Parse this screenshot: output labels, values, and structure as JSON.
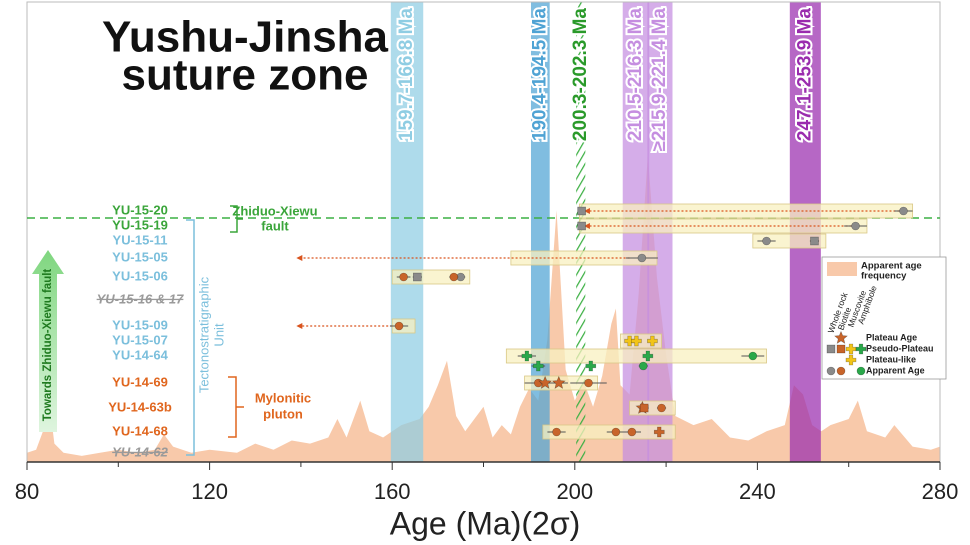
{
  "chart_data": {
    "type": "geochronology",
    "title": [
      "Yushu-Jinsha",
      "suture zone"
    ],
    "xlabel": "Age (Ma)(2σ)",
    "xlim": [
      80,
      280
    ],
    "xticks": [
      80,
      120,
      160,
      200,
      240,
      280
    ],
    "xminor_ticks": [
      100,
      140,
      180,
      220,
      260
    ],
    "bands": [
      {
        "label": "159.7-166.8 Ma",
        "range": [
          159.7,
          166.8
        ],
        "color": "#8fcde3"
      },
      {
        "label": "190.4-194.5 Ma",
        "range": [
          190.4,
          194.5
        ],
        "color": "#4fa3d4"
      },
      {
        "label": "200.3-202.3 Ma",
        "range": [
          200.3,
          202.3
        ],
        "color": "#3cb043",
        "pattern": "hatch"
      },
      {
        "label": "210.5-216.3 Ma",
        "range": [
          210.5,
          216.3
        ],
        "color": "#c58ee0"
      },
      {
        "label": "≥215.9-221.4 Ma",
        "range": [
          215.9,
          221.4
        ],
        "color": "#c58ee0"
      },
      {
        "label": "247.1-253.9 Ma",
        "range": [
          247.1,
          253.9
        ],
        "color": "#9a2cae"
      }
    ],
    "frequency": {
      "color": "#f8c9aa",
      "x": [
        80,
        82,
        84,
        85,
        86,
        88,
        92,
        96,
        100,
        104,
        108,
        110,
        112,
        116,
        120,
        126,
        130,
        134,
        138,
        142,
        146,
        148,
        150,
        153,
        155,
        158,
        162,
        166,
        168,
        170,
        172,
        174,
        176,
        178,
        180,
        182,
        184,
        186,
        188,
        190,
        192,
        194,
        196,
        198,
        200,
        202,
        204,
        206,
        208,
        209,
        210,
        212,
        214,
        216,
        218,
        220,
        222,
        226,
        230,
        234,
        238,
        242,
        246,
        248,
        250,
        252,
        254,
        256,
        260,
        262,
        264,
        268,
        270,
        274,
        278,
        280
      ],
      "values": [
        3,
        4,
        12,
        18,
        6,
        3,
        2,
        3,
        4,
        3,
        4,
        9,
        5,
        3,
        4,
        3,
        6,
        4,
        7,
        6,
        8,
        14,
        8,
        20,
        10,
        8,
        12,
        14,
        18,
        25,
        33,
        15,
        10,
        14,
        18,
        8,
        12,
        9,
        18,
        24,
        20,
        40,
        82,
        30,
        20,
        26,
        18,
        28,
        45,
        50,
        25,
        22,
        55,
        100,
        60,
        35,
        15,
        12,
        14,
        8,
        7,
        10,
        12,
        25,
        22,
        12,
        10,
        12,
        14,
        20,
        10,
        8,
        12,
        5,
        4,
        5
      ]
    },
    "fault_line_color": "#3cb043",
    "samples": [
      {
        "label": "YU-15-20",
        "color": "#3aa53a",
        "box": [
          201,
          274
        ],
        "arrow": [
          272,
          202
        ],
        "points": [
          {
            "age": 201.5,
            "err": 0.5,
            "color": "#8a8a8a",
            "marker": "square"
          },
          {
            "age": 272,
            "err": 2,
            "color": "#8a8a8a",
            "marker": "circle"
          }
        ]
      },
      {
        "label": "YU-15-19",
        "color": "#3aa53a",
        "box": [
          201,
          264
        ],
        "arrow": [
          261.5,
          202
        ],
        "points": [
          {
            "age": 201.5,
            "err": 0.5,
            "color": "#8a8a8a",
            "marker": "square"
          },
          {
            "age": 261.5,
            "err": 2.5,
            "color": "#8a8a8a",
            "marker": "circle"
          }
        ]
      },
      {
        "label": "YU-15-11",
        "color": "#7bbfdc",
        "box": [
          239,
          255
        ],
        "points": [
          {
            "age": 242,
            "err": 2,
            "color": "#8a8a8a",
            "marker": "circle"
          },
          {
            "age": 252.5,
            "err": 1,
            "color": "#8a8a8a",
            "marker": "square"
          }
        ]
      },
      {
        "label": "YU-15-05",
        "color": "#7bbfdc",
        "box": [
          186,
          218
        ],
        "arrow": [
          212,
          139
        ],
        "points": [
          {
            "age": 214.7,
            "err": 3.5,
            "color": "#8a8a8a",
            "marker": "circle"
          }
        ]
      },
      {
        "label": "YU-15-06",
        "color": "#7bbfdc",
        "box": [
          160,
          177
        ],
        "points": [
          {
            "age": 165.5,
            "err": 1,
            "color": "#8a8a8a",
            "marker": "square"
          },
          {
            "age": 175,
            "err": 1,
            "color": "#8a8a8a",
            "marker": "circle"
          },
          {
            "age": 162.5,
            "err": 1.5,
            "color": "#c8642a",
            "marker": "circle"
          },
          {
            "age": 173.5,
            "err": 1,
            "color": "#c8642a",
            "marker": "circle"
          }
        ]
      },
      {
        "label": "YU-15-16 & 17",
        "color": "#9a9a9a",
        "struck": true,
        "points": []
      },
      {
        "label": "YU-15-09",
        "color": "#7bbfdc",
        "box": [
          160,
          165
        ],
        "arrow": [
          160,
          139
        ],
        "points": [
          {
            "age": 161.5,
            "err": 2,
            "color": "#c8642a",
            "marker": "circle"
          }
        ]
      },
      {
        "label": "YU-15-07",
        "color": "#7bbfdc",
        "box": [
          210,
          219
        ],
        "points": [
          {
            "age": 212,
            "err": 1,
            "color": "#f2c418",
            "marker": "cross"
          },
          {
            "age": 213.5,
            "err": 1,
            "color": "#f2c418",
            "marker": "cross"
          },
          {
            "age": 217,
            "err": 1,
            "color": "#f2c418",
            "marker": "cross"
          }
        ]
      },
      {
        "label": "YU-14-64",
        "color": "#7bbfdc",
        "box": [
          185,
          242
        ],
        "points": [
          {
            "age": 189.5,
            "err": 2,
            "color": "#2aa84a",
            "marker": "cross"
          },
          {
            "age": 216,
            "err": 1,
            "color": "#2aa84a",
            "marker": "cross"
          },
          {
            "age": 239,
            "err": 2.5,
            "color": "#2aa84a",
            "marker": "circle"
          }
        ]
      },
      {
        "label": null,
        "color": "#7bbfdc",
        "points": [
          {
            "age": 192,
            "err": 1.5,
            "color": "#2aa84a",
            "marker": "cross"
          },
          {
            "age": 203.5,
            "err": 1,
            "color": "#2aa84a",
            "marker": "cross"
          },
          {
            "age": 215,
            "err": 1,
            "color": "#2aa84a",
            "marker": "circle"
          }
        ]
      },
      {
        "label": "YU-14-69",
        "color": "#e0661e",
        "box": [
          189,
          205
        ],
        "points": [
          {
            "age": 192,
            "err": 3,
            "color": "#c8642a",
            "marker": "circle"
          },
          {
            "age": 193.5,
            "err": 1,
            "color": "#c8642a",
            "marker": "star"
          },
          {
            "age": 196.5,
            "err": 2,
            "color": "#c8642a",
            "marker": "star"
          },
          {
            "age": 203,
            "err": 4,
            "color": "#c8642a",
            "marker": "circle"
          }
        ]
      },
      {
        "label": "YU-14-63b",
        "color": "#e0661e",
        "box": [
          212,
          222
        ],
        "points": [
          {
            "age": 214.8,
            "err": 0.5,
            "color": "#c8642a",
            "marker": "star"
          },
          {
            "age": 215.2,
            "err": 1,
            "color": "#c8642a",
            "marker": "square"
          },
          {
            "age": 219,
            "err": 1,
            "color": "#c8642a",
            "marker": "circle"
          }
        ]
      },
      {
        "label": "YU-14-68",
        "color": "#e0661e",
        "box": [
          193,
          222
        ],
        "points": [
          {
            "age": 196,
            "err": 2,
            "color": "#c8642a",
            "marker": "circle"
          },
          {
            "age": 209,
            "err": 2,
            "color": "#c8642a",
            "marker": "circle"
          },
          {
            "age": 212.5,
            "err": 2,
            "color": "#c8642a",
            "marker": "circle"
          },
          {
            "age": 218.5,
            "err": 1,
            "color": "#c8642a",
            "marker": "cross"
          }
        ]
      },
      {
        "label": "YU-14-62",
        "color": "#9a9a9a",
        "struck": true,
        "points": []
      }
    ],
    "annotations": {
      "fault": [
        "Zhiduo-Xiewu",
        "fault"
      ],
      "unit": [
        "Tectonostratigraphic",
        "Unit"
      ],
      "pluton": [
        "Mylonitic",
        "pluton"
      ],
      "arrow": "Towards Zhiduo-Xiewu fault"
    },
    "legend": {
      "frequency_label": [
        "Apparent age",
        "frequency"
      ],
      "columns": [
        "Whole rock",
        "Biotite",
        "Muscovite",
        "Amphibole"
      ],
      "rows": [
        {
          "label": "Plateau Age",
          "markers": [
            null,
            "star",
            null,
            null
          ],
          "colors": [
            null,
            "#c8642a",
            null,
            null
          ]
        },
        {
          "label": "Pseudo-Plateau",
          "markers": [
            "square",
            "square",
            "cross",
            "cross"
          ],
          "colors": [
            "#8a8a8a",
            "#c8642a",
            "#f2c418",
            "#2aa84a"
          ]
        },
        {
          "label": "Plateau-like",
          "markers": [
            null,
            null,
            "cross",
            null
          ],
          "colors": [
            null,
            null,
            "#f2c418",
            null
          ]
        },
        {
          "label": "Apparent Age",
          "markers": [
            "circle",
            "circle",
            null,
            "circle"
          ],
          "colors": [
            "#8a8a8a",
            "#c8642a",
            null,
            "#2aa84a"
          ]
        }
      ]
    }
  }
}
